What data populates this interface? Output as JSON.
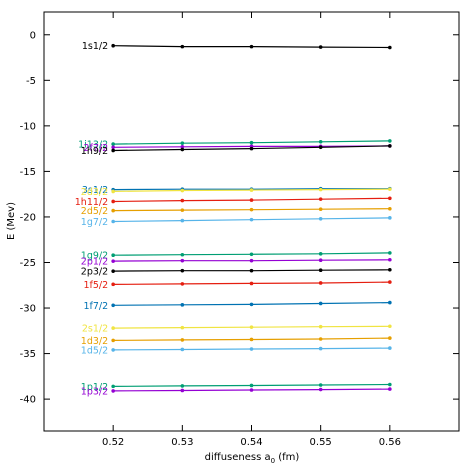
{
  "chart_data": {
    "type": "line",
    "title": "",
    "xlabel": "diffuseness a",
    "xlabel_sub": "0",
    "xlabel_unit": " (fm)",
    "ylabel": "E (Mev)",
    "xlim": [
      0.51,
      0.57
    ],
    "ylim": [
      -43.5,
      2.5
    ],
    "xticks": [
      0.52,
      0.53,
      0.54,
      0.55,
      0.56
    ],
    "xtick_labels": [
      "0.52",
      "0.53",
      "0.54",
      "0.55",
      "0.56"
    ],
    "yticks": [
      0,
      -5,
      -10,
      -15,
      -20,
      -25,
      -30,
      -35,
      -40
    ],
    "ytick_labels": [
      "0",
      "-5",
      "-10",
      "-15",
      "-20",
      "-25",
      "-30",
      "-35",
      "-40"
    ],
    "grid": false,
    "legend": "none",
    "x": [
      0.52,
      0.53,
      0.54,
      0.55,
      0.56
    ],
    "series": [
      {
        "name": "1s1/2",
        "color": "#000000",
        "values": [
          -1.2,
          -1.3,
          -1.3,
          -1.35,
          -1.4
        ]
      },
      {
        "name": "1i13/2",
        "color": "#009e73",
        "values": [
          -12.0,
          -11.9,
          -11.85,
          -11.75,
          -11.65
        ]
      },
      {
        "name": "2f7/2",
        "color": "#9400d3",
        "values": [
          -12.35,
          -12.3,
          -12.25,
          -12.25,
          -12.2
        ]
      },
      {
        "name": "1h9/2",
        "color": "#000000",
        "values": [
          -12.7,
          -12.6,
          -12.5,
          -12.35,
          -12.2
        ]
      },
      {
        "name": "3s1/2",
        "color": "#0072b2",
        "values": [
          -17.0,
          -16.95,
          -16.95,
          -16.9,
          -16.9
        ]
      },
      {
        "name": "2d3/2",
        "color": "#f0e442",
        "values": [
          -17.2,
          -17.1,
          -17.05,
          -17.0,
          -16.95
        ]
      },
      {
        "name": "1h11/2",
        "color": "#e51e10",
        "values": [
          -18.3,
          -18.2,
          -18.15,
          -18.05,
          -17.95
        ]
      },
      {
        "name": "2d5/2",
        "color": "#e69f00",
        "values": [
          -19.3,
          -19.25,
          -19.2,
          -19.15,
          -19.1
        ]
      },
      {
        "name": "1g7/2",
        "color": "#56b4e9",
        "values": [
          -20.5,
          -20.4,
          -20.3,
          -20.2,
          -20.1
        ]
      },
      {
        "name": "1g9/2",
        "color": "#009e73",
        "values": [
          -24.2,
          -24.15,
          -24.1,
          -24.05,
          -23.95
        ]
      },
      {
        "name": "2p1/2",
        "color": "#9400d3",
        "values": [
          -24.85,
          -24.8,
          -24.8,
          -24.75,
          -24.7
        ]
      },
      {
        "name": "2p3/2",
        "color": "#000000",
        "values": [
          -25.95,
          -25.9,
          -25.9,
          -25.85,
          -25.8
        ]
      },
      {
        "name": "1f5/2",
        "color": "#e51e10",
        "values": [
          -27.4,
          -27.35,
          -27.3,
          -27.25,
          -27.15
        ]
      },
      {
        "name": "1f7/2",
        "color": "#0072b2",
        "values": [
          -29.7,
          -29.65,
          -29.6,
          -29.5,
          -29.4
        ]
      },
      {
        "name": "2s1/2",
        "color": "#f0e442",
        "values": [
          -32.2,
          -32.15,
          -32.1,
          -32.05,
          -32.0
        ]
      },
      {
        "name": "1d3/2",
        "color": "#e69f00",
        "values": [
          -33.55,
          -33.5,
          -33.45,
          -33.4,
          -33.3
        ]
      },
      {
        "name": "1d5/2",
        "color": "#56b4e9",
        "values": [
          -34.6,
          -34.55,
          -34.5,
          -34.45,
          -34.4
        ]
      },
      {
        "name": "1p1/2",
        "color": "#009e73",
        "values": [
          -38.6,
          -38.55,
          -38.5,
          -38.45,
          -38.4
        ]
      },
      {
        "name": "1p3/2",
        "color": "#9400d3",
        "values": [
          -39.1,
          -39.05,
          -39.0,
          -38.95,
          -38.9
        ]
      }
    ]
  }
}
